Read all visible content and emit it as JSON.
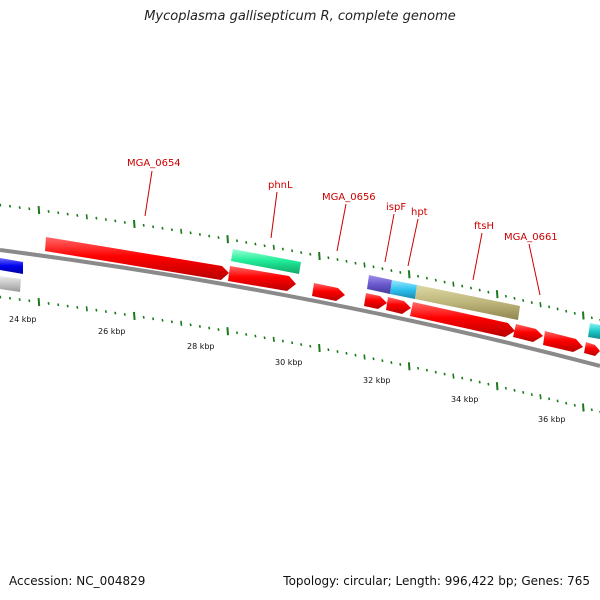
{
  "header": {
    "title": "Mycoplasma gallisepticum R, complete genome"
  },
  "footer": {
    "accession": "Accession: NC_004829",
    "stats": "Topology: circular; Length: 996,422 bp; Genes: 765"
  },
  "map": {
    "kbp_labels": [
      "24 kbp",
      "26 kbp",
      "28 kbp",
      "30 kbp",
      "32 kbp",
      "34 kbp",
      "36 kbp"
    ],
    "gene_labels": [
      "MGA_0654",
      "phnL",
      "MGA_0656",
      "ispF",
      "hpt",
      "ftsH",
      "MGA_0661"
    ],
    "colors": {
      "cds": "#ff0000",
      "tick": "#1a7a1a",
      "backbone": "#808080",
      "label": "#cc0000"
    }
  }
}
